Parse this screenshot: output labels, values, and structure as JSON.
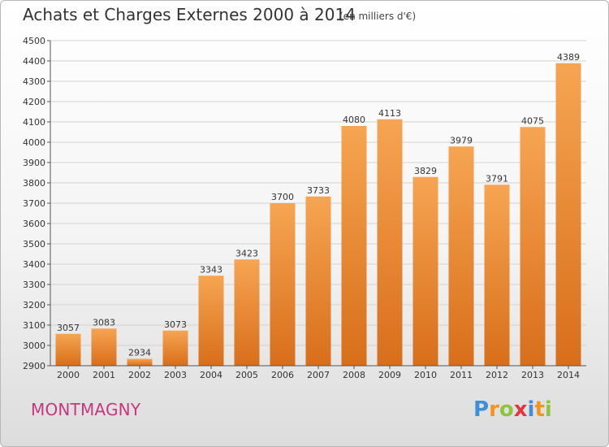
{
  "header": {
    "title": "Achats et Charges Externes 2000 à 2014",
    "subtitle": "(en milliers d'€)"
  },
  "footer": {
    "place": "MONTMAGNY",
    "logo_letters": [
      "P",
      "r",
      "o",
      "x",
      "i",
      "t",
      "i"
    ],
    "logo_colors": [
      "#3f8fd6",
      "#f29422",
      "#8cc63f",
      "#e6333f",
      "#3f8fd6",
      "#f29422",
      "#8cc63f"
    ]
  },
  "chart_data": {
    "type": "bar",
    "title": "Achats et Charges Externes 2000 à 2014",
    "subtitle": "(en milliers d'€)",
    "xlabel": "",
    "ylabel": "",
    "categories": [
      "2000",
      "2001",
      "2002",
      "2003",
      "2004",
      "2005",
      "2006",
      "2007",
      "2008",
      "2009",
      "2010",
      "2011",
      "2012",
      "2013",
      "2014"
    ],
    "values": [
      3057,
      3083,
      2934,
      3073,
      3343,
      3423,
      3700,
      3733,
      4080,
      4113,
      3829,
      3979,
      3791,
      4075,
      4389
    ],
    "ylim": [
      2900,
      4500
    ],
    "yticks": [
      "2900",
      "3000",
      "3100",
      "3200",
      "3300",
      "3400",
      "3500",
      "3600",
      "3700",
      "3800",
      "3900",
      "4000",
      "4100",
      "4200",
      "4300",
      "4400",
      "4500"
    ],
    "grid": true,
    "bar_color": "#f0903c"
  }
}
